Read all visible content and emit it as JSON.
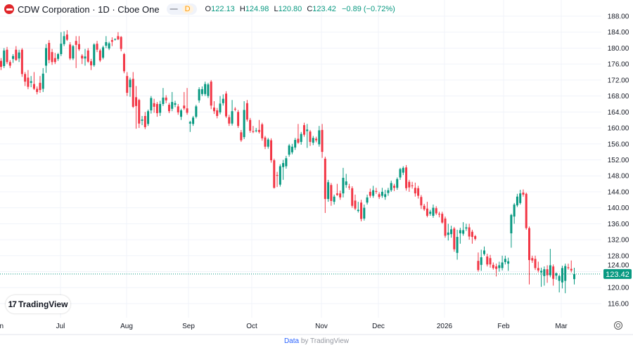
{
  "header": {
    "symbol_title": "CDW Corporation · 1D · Cboe One",
    "pill_dash": "—",
    "pill_interval": "D",
    "open_label": "O",
    "open": "122.13",
    "high_label": "H",
    "high": "124.98",
    "low_label": "L",
    "low": "120.80",
    "close_label": "C",
    "close": "123.42",
    "change": "−0.89 (−0.72%)"
  },
  "branding": {
    "logo_mark": "17",
    "logo_text": "TradingView"
  },
  "footer": {
    "data_link": "Data",
    "by_text": "by TradingView"
  },
  "colors": {
    "up": "#089981",
    "down": "#f23645",
    "grid": "#f0f3fa",
    "last_price_bg": "#089981"
  },
  "chart_data": {
    "type": "candlestick",
    "interval": "1D",
    "x_tick_labels": [
      "Jun",
      "Jul",
      "Aug",
      "Sep",
      "Oct",
      "Nov",
      "Dec",
      "2026",
      "Feb",
      "Mar"
    ],
    "y_tick_labels": [
      "188.00",
      "184.00",
      "180.00",
      "176.00",
      "172.00",
      "168.00",
      "164.00",
      "160.00",
      "156.00",
      "152.00",
      "148.00",
      "144.00",
      "140.00",
      "136.00",
      "132.00",
      "128.00",
      "124.00",
      "120.00",
      "116.00"
    ],
    "ylim": [
      114.5,
      192
    ],
    "grid": true,
    "last_price": 123.42,
    "last_price_label": "123.42",
    "candle_format": [
      "open",
      "high",
      "low",
      "close"
    ],
    "candles": [
      [
        176.8,
        177.5,
        174.5,
        175.3
      ],
      [
        175.5,
        180,
        175,
        179.4
      ],
      [
        179.6,
        180.3,
        176,
        176.5
      ],
      [
        176.5,
        177,
        175,
        175.6
      ],
      [
        177.3,
        178.5,
        176.3,
        178
      ],
      [
        179.6,
        180.5,
        176.8,
        177
      ],
      [
        177.4,
        179.6,
        176.5,
        178.9
      ],
      [
        179.6,
        180,
        172.8,
        173.5
      ],
      [
        173.5,
        174,
        170.5,
        171.6
      ],
      [
        172.6,
        174.5,
        169.7,
        170.3
      ],
      [
        171.3,
        173,
        170.2,
        171.7
      ],
      [
        171,
        174,
        169.5,
        169.8
      ],
      [
        169.8,
        170.4,
        168.4,
        169
      ],
      [
        171.3,
        173,
        168.8,
        169.5
      ],
      [
        169.8,
        175,
        169,
        173.6
      ],
      [
        175.6,
        181,
        173.8,
        180
      ],
      [
        181.3,
        182,
        176.2,
        177
      ],
      [
        179,
        179.8,
        175.8,
        176.5
      ],
      [
        177.5,
        178.8,
        176,
        176.5
      ],
      [
        177.3,
        178.8,
        176.8,
        178.5
      ],
      [
        178.5,
        184,
        178,
        181.1
      ],
      [
        181,
        184.2,
        180.5,
        183
      ],
      [
        183.4,
        184.5,
        181.8,
        182.1
      ],
      [
        180.9,
        181.5,
        177,
        177.4
      ],
      [
        177.4,
        180.8,
        177,
        180.5
      ],
      [
        181.8,
        183,
        175,
        180.8
      ],
      [
        181,
        183,
        179.3,
        179.7
      ],
      [
        178.1,
        178.5,
        176,
        177.4
      ],
      [
        177.4,
        179.8,
        175.6,
        177.9
      ],
      [
        179.4,
        180,
        176.3,
        176.6
      ],
      [
        176.7,
        177.3,
        174.5,
        175.7
      ],
      [
        175.7,
        181.2,
        175.3,
        180.9
      ],
      [
        181.1,
        181.8,
        179,
        179.6
      ],
      [
        179.4,
        179.8,
        176.5,
        176.9
      ],
      [
        177.6,
        180.6,
        177.2,
        180.2
      ],
      [
        180.6,
        183,
        180,
        181.5
      ],
      [
        179.9,
        181.6,
        179.5,
        181.2
      ],
      [
        182,
        182.7,
        180.5,
        181.6
      ],
      [
        182.1,
        182.4,
        181.9,
        182.3
      ],
      [
        183,
        184,
        182,
        182.2
      ],
      [
        182.8,
        183,
        179.2,
        179.8
      ],
      [
        178.5,
        178.8,
        173.7,
        174.2
      ],
      [
        173,
        174,
        168,
        168.8
      ],
      [
        170.2,
        172.6,
        167.8,
        172.1
      ],
      [
        172.3,
        174,
        165,
        165.3
      ],
      [
        167.7,
        170.5,
        159.8,
        165.5
      ],
      [
        167,
        167.3,
        160,
        161.1
      ],
      [
        161.8,
        163,
        160.7,
        162.1
      ],
      [
        163,
        164,
        159.7,
        160.2
      ],
      [
        161,
        164.6,
        160.5,
        164.2
      ],
      [
        164.4,
        168,
        163.6,
        167.5
      ],
      [
        166.2,
        167.3,
        163.8,
        165.3
      ],
      [
        166,
        166.5,
        162.8,
        163.7
      ],
      [
        163.8,
        166.8,
        163,
        166
      ],
      [
        166,
        170,
        165.5,
        167.6
      ],
      [
        167.6,
        168.2,
        166.2,
        166.9
      ],
      [
        165.8,
        166.3,
        163.7,
        164.2
      ],
      [
        164.8,
        169,
        164.2,
        166.5
      ],
      [
        165.8,
        166.8,
        165.2,
        166.2
      ],
      [
        165.4,
        166,
        163.3,
        163.9
      ],
      [
        162.8,
        164.8,
        162,
        164.4
      ],
      [
        165.6,
        169,
        164.5,
        164.9
      ],
      [
        164.9,
        170,
        163.3,
        163.8
      ],
      [
        161.1,
        161.8,
        159,
        161.5
      ],
      [
        161,
        163,
        160.5,
        162.6
      ],
      [
        162.8,
        165.8,
        162.4,
        165.4
      ],
      [
        166.9,
        170.2,
        166.3,
        169.7
      ],
      [
        168.5,
        170.4,
        168,
        169.7
      ],
      [
        168.5,
        171.6,
        168,
        171
      ],
      [
        168,
        171.3,
        167.5,
        170.9
      ],
      [
        171.6,
        172,
        164.7,
        165.6
      ],
      [
        165.1,
        166.7,
        163.5,
        164.2
      ],
      [
        164.4,
        165,
        162.4,
        163
      ],
      [
        163.9,
        168,
        163.4,
        166.1
      ],
      [
        166.2,
        168.4,
        165.6,
        167.3
      ],
      [
        168.6,
        169.2,
        162.5,
        162.9
      ],
      [
        162.7,
        163.3,
        160.5,
        161.1
      ],
      [
        161.1,
        167,
        160.6,
        164.2
      ],
      [
        164.8,
        165.2,
        164.2,
        164.6
      ],
      [
        164,
        164.5,
        160,
        160.5
      ],
      [
        158.9,
        159.5,
        156.5,
        156.9
      ],
      [
        157.7,
        166.7,
        157.2,
        164.5
      ],
      [
        166.2,
        167,
        161.6,
        162.1
      ],
      [
        162,
        162.5,
        158.8,
        159.3
      ],
      [
        159.2,
        160.5,
        158.7,
        159
      ],
      [
        159.2,
        160,
        158.9,
        159.4
      ],
      [
        159.5,
        162,
        158.6,
        159
      ],
      [
        160.9,
        161.3,
        156.8,
        157.4
      ],
      [
        157.6,
        158,
        154.7,
        155.3
      ],
      [
        155.3,
        157.5,
        154.8,
        157.1
      ],
      [
        156.9,
        157.4,
        151.3,
        151.9
      ],
      [
        151.9,
        152.3,
        144.8,
        145
      ],
      [
        148.2,
        149,
        145.2,
        148
      ],
      [
        145.8,
        150.9,
        145.3,
        150.4
      ],
      [
        150.2,
        152,
        147,
        151.2
      ],
      [
        150.4,
        153,
        149.8,
        152.4
      ],
      [
        153.3,
        156,
        152.8,
        155.6
      ],
      [
        153.9,
        156,
        153.4,
        155.3
      ],
      [
        155.1,
        157.5,
        154.5,
        157
      ],
      [
        157.3,
        161,
        156,
        156.3
      ],
      [
        156.5,
        159,
        155.8,
        158.5
      ],
      [
        160.7,
        161.3,
        157.8,
        158.3
      ],
      [
        159.2,
        161,
        155,
        159.6
      ],
      [
        159.1,
        159.5,
        155.5,
        156.5
      ],
      [
        156.3,
        158,
        155.7,
        157.5
      ],
      [
        157.3,
        157.8,
        156.4,
        156.9
      ],
      [
        155.9,
        160.5,
        155.3,
        159.4
      ],
      [
        159.5,
        161,
        152.5,
        154
      ],
      [
        152.3,
        152.8,
        138.7,
        142.2
      ],
      [
        142.2,
        147,
        141.5,
        146.4
      ],
      [
        145.7,
        146.2,
        140.5,
        141.7
      ],
      [
        141.5,
        143.3,
        140.8,
        142.8
      ],
      [
        143.6,
        146,
        143,
        143.2
      ],
      [
        143.6,
        144.3,
        142,
        142.6
      ],
      [
        143.6,
        150,
        142.6,
        147.5
      ],
      [
        145.7,
        148.5,
        145,
        146.6
      ],
      [
        145.3,
        146,
        144.5,
        145.1
      ],
      [
        144.9,
        145.4,
        140,
        140.5
      ],
      [
        141.8,
        143.3,
        139.4,
        139.8
      ],
      [
        139.2,
        141.5,
        138.8,
        139.5
      ],
      [
        141.3,
        142,
        136.6,
        137.2
      ],
      [
        137.3,
        140.8,
        136.8,
        140
      ],
      [
        141.3,
        143.3,
        140.8,
        142.6
      ],
      [
        144,
        144.8,
        142.5,
        143
      ],
      [
        143,
        145.5,
        142.5,
        144.4
      ],
      [
        144.2,
        145,
        143.5,
        144
      ],
      [
        143.4,
        143.9,
        142.2,
        142.7
      ],
      [
        143,
        145,
        142.5,
        144
      ],
      [
        142.7,
        144.5,
        142,
        143.4
      ],
      [
        143.7,
        145,
        143,
        144.4
      ],
      [
        144.4,
        146.8,
        144,
        146.2
      ],
      [
        145.5,
        146,
        144.2,
        145
      ],
      [
        145,
        147.6,
        144.5,
        147.2
      ],
      [
        147.6,
        150,
        147,
        149.7
      ],
      [
        148.8,
        150.4,
        148.2,
        150
      ],
      [
        150.1,
        150.7,
        144.3,
        144.9
      ],
      [
        146.5,
        147,
        144,
        145.1
      ],
      [
        145.6,
        146.5,
        144.8,
        145.4
      ],
      [
        145,
        146.3,
        142.8,
        143.6
      ],
      [
        144.9,
        145.5,
        142.3,
        143
      ],
      [
        142.7,
        143.2,
        139.7,
        140.6
      ],
      [
        140.5,
        141,
        139.2,
        139.6
      ],
      [
        139.8,
        141.5,
        137.6,
        138
      ],
      [
        138.5,
        139.5,
        138,
        139
      ],
      [
        138,
        140.8,
        137.5,
        140
      ],
      [
        139.9,
        140.4,
        138.2,
        138.6
      ],
      [
        138.5,
        139,
        137.6,
        138.3
      ],
      [
        138.5,
        139,
        136,
        136.3
      ],
      [
        137.3,
        137.8,
        132.5,
        133
      ],
      [
        133.2,
        136,
        131.8,
        133.8
      ],
      [
        133.4,
        135.5,
        132.5,
        134.6
      ],
      [
        134.8,
        135.2,
        129,
        129.6
      ],
      [
        128.7,
        134.5,
        127,
        132.7
      ],
      [
        133.6,
        135,
        131,
        134.4
      ],
      [
        133.5,
        136.4,
        133,
        134.4
      ],
      [
        134.8,
        136,
        134.2,
        135.1
      ],
      [
        135.1,
        136,
        132,
        132.8
      ],
      [
        134,
        134.5,
        131,
        132.7
      ],
      [
        132.9,
        133.2,
        131.8,
        132.2
      ],
      [
        126.7,
        128.8,
        124,
        124.4
      ],
      [
        125.7,
        129.5,
        124.2,
        127.6
      ],
      [
        128.4,
        130.3,
        128,
        129.3
      ],
      [
        127.8,
        128.5,
        125.3,
        125.8
      ],
      [
        127.4,
        128.2,
        125,
        125.8
      ],
      [
        125.7,
        126.3,
        124.5,
        124.9
      ],
      [
        125.3,
        126,
        122.8,
        124.7
      ],
      [
        124.9,
        126.5,
        124,
        125.6
      ],
      [
        124.9,
        128,
        124.3,
        126.3
      ],
      [
        126.4,
        128,
        125.8,
        127.2
      ],
      [
        126,
        127.5,
        124.2,
        126.6
      ],
      [
        133.6,
        138.5,
        130,
        138.2
      ],
      [
        137.8,
        141.2,
        136,
        140.8
      ],
      [
        140.6,
        143.5,
        140.2,
        142.8
      ],
      [
        141.2,
        144.5,
        140.8,
        143.6
      ],
      [
        143.8,
        144.6,
        142.8,
        143.3
      ],
      [
        143.5,
        143.8,
        134.5,
        134.9
      ],
      [
        134.9,
        135.3,
        120.8,
        126.9
      ],
      [
        127.4,
        128,
        126.2,
        126.8
      ],
      [
        127.2,
        128,
        124.4,
        124.9
      ],
      [
        124.9,
        126.5,
        123.8,
        124.3
      ],
      [
        123.8,
        125,
        120.2,
        124.2
      ],
      [
        122.9,
        125.3,
        120.5,
        124.6
      ],
      [
        124.6,
        125.6,
        121.2,
        123.1
      ],
      [
        123.1,
        129.7,
        122.6,
        125.6
      ],
      [
        125.3,
        125.8,
        120.5,
        122.2
      ],
      [
        123,
        123.8,
        122,
        123.6
      ],
      [
        121.7,
        123.2,
        118.8,
        122.9
      ],
      [
        121.3,
        125.5,
        119.8,
        124.9
      ],
      [
        121.7,
        126,
        118.6,
        125.4
      ],
      [
        125.1,
        126,
        124.5,
        124.9
      ],
      [
        124.7,
        126.8,
        123.8,
        124.3
      ],
      [
        122.13,
        124.98,
        120.8,
        123.42
      ]
    ]
  }
}
